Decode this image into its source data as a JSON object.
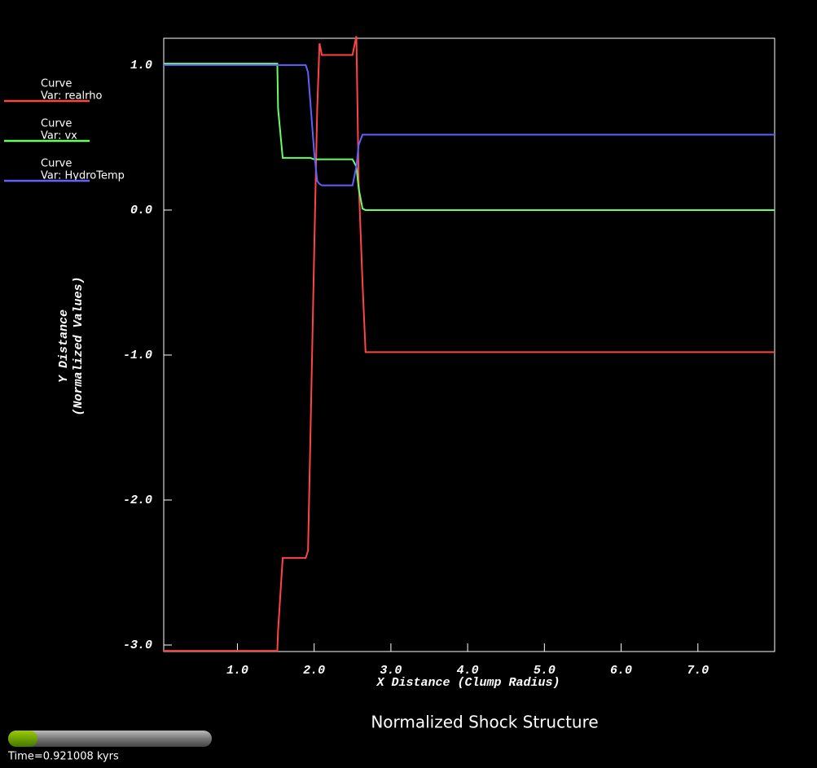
{
  "chart_data": {
    "type": "line",
    "title": "Normalized Shock Structure",
    "xlabel": "X Distance (Clump Radius)",
    "ylabel": [
      "Y Distance",
      "(Normalized Values)"
    ],
    "legend_header": "Curve",
    "time_label": "Time=0.921008 kyrs",
    "xlim": [
      0.04,
      8.0
    ],
    "ylim": [
      -3.045,
      1.185
    ],
    "xticks": [
      {
        "value": 1,
        "label": "1.0"
      },
      {
        "value": 2,
        "label": "2.0"
      },
      {
        "value": 3,
        "label": "3.0"
      },
      {
        "value": 4,
        "label": "4.0"
      },
      {
        "value": 5,
        "label": "5.0"
      },
      {
        "value": 6,
        "label": "6.0"
      },
      {
        "value": 7,
        "label": "7.0"
      }
    ],
    "yticks": [
      {
        "value": 1,
        "label": "1.0"
      },
      {
        "value": 0,
        "label": "0.0"
      },
      {
        "value": -1,
        "label": "-1.0"
      },
      {
        "value": -2,
        "label": "-2.0"
      },
      {
        "value": -3,
        "label": "-3.0"
      }
    ],
    "x": [
      0.04,
      1.52,
      1.53,
      1.59,
      1.89,
      1.92,
      1.95,
      2.0,
      2.04,
      2.07,
      2.1,
      2.5,
      2.55,
      2.58,
      2.63,
      2.67,
      8.0
    ],
    "series": [
      {
        "name": "Var: realrho",
        "color": "#ff4444",
        "values": [
          -3.04,
          -3.04,
          -2.9,
          -2.4,
          -2.4,
          -2.35,
          -1.6,
          -0.3,
          0.7,
          1.15,
          1.07,
          1.07,
          1.2,
          0.2,
          -0.5,
          -0.98,
          -0.98
        ]
      },
      {
        "name": "Var: vx",
        "color": "#66ff66",
        "values": [
          1.01,
          1.01,
          0.7,
          0.36,
          0.36,
          0.36,
          0.36,
          0.35,
          0.35,
          0.35,
          0.35,
          0.35,
          0.3,
          0.15,
          0.01,
          0.0,
          0.0
        ]
      },
      {
        "name": "Var: HydroTemp",
        "color": "#6060ff",
        "values": [
          1.0,
          1.0,
          1.0,
          1.0,
          1.0,
          0.95,
          0.75,
          0.4,
          0.2,
          0.18,
          0.17,
          0.17,
          0.3,
          0.45,
          0.52,
          0.52,
          0.52
        ]
      }
    ]
  }
}
